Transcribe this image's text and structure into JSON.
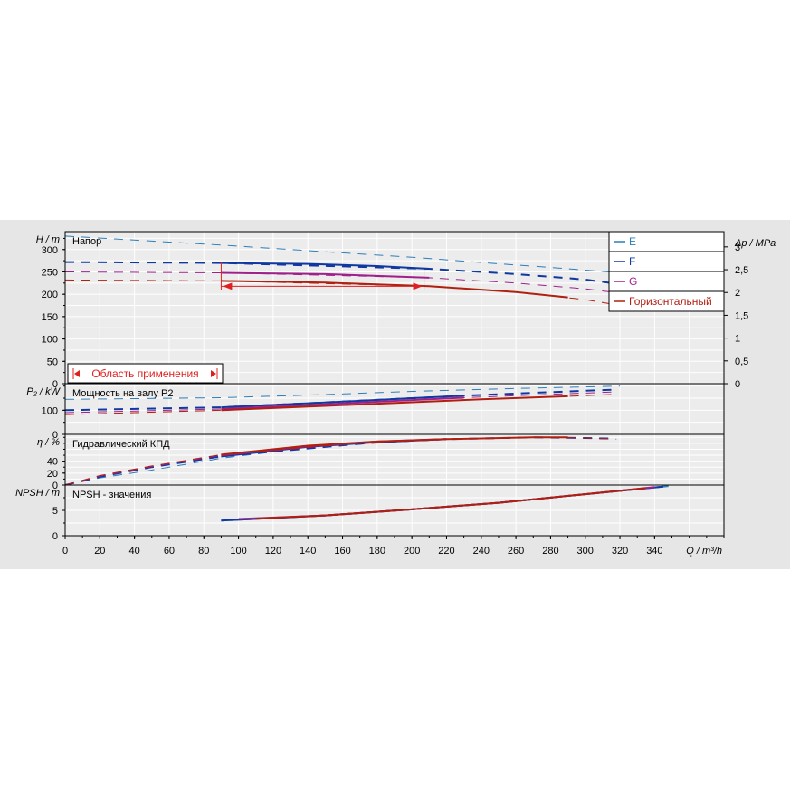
{
  "colors": {
    "panel_bg": "#e6e6e6",
    "plot_bg": "#ececec",
    "grid": "#ffffff",
    "axis": "#000000",
    "E": "#2e7eb8",
    "F": "#1038a0",
    "G": "#a0208a",
    "H": "#b02010",
    "range": "#e02020"
  },
  "chart_data": {
    "type": "line",
    "x_axis": {
      "label": "Q / m³/h",
      "range": [
        0,
        380
      ],
      "ticks": [
        0,
        20,
        40,
        60,
        80,
        100,
        120,
        140,
        160,
        180,
        200,
        220,
        240,
        260,
        280,
        300,
        320,
        340
      ]
    },
    "legend": {
      "placement": "top-right",
      "entries": [
        {
          "key": "E",
          "label": "E"
        },
        {
          "key": "F",
          "label": "F"
        },
        {
          "key": "G",
          "label": "G"
        },
        {
          "key": "H",
          "label": "Горизонтальный"
        }
      ]
    },
    "panels": [
      {
        "id": "head",
        "title": "Напор",
        "ylabel": "H / m",
        "ylim": [
          0,
          340
        ],
        "yticks": [
          0,
          50,
          100,
          150,
          200,
          250,
          300
        ],
        "y2label": "Δp / MPa",
        "y2lim": [
          0,
          3.334
        ],
        "y2ticks": [
          "0",
          "0,5",
          "1",
          "1,5",
          "2",
          "2,5",
          "3"
        ],
        "series": [
          {
            "key": "E",
            "dashed": [
              [
                0,
                330
              ],
              [
                90,
                310
              ],
              [
                150,
                295
              ],
              [
                200,
                283
              ],
              [
                240,
                271
              ],
              [
                280,
                260
              ],
              [
                320,
                248
              ]
            ],
            "solid": []
          },
          {
            "key": "F",
            "dashed": [
              [
                0,
                272
              ],
              [
                90,
                270
              ],
              [
                210,
                257
              ],
              [
                260,
                245
              ],
              [
                300,
                233
              ],
              [
                315,
                225
              ]
            ],
            "solid": [
              [
                90,
                270
              ],
              [
                140,
                268
              ],
              [
                180,
                263
              ],
              [
                210,
                257
              ]
            ]
          },
          {
            "key": "G",
            "dashed": [
              [
                0,
                250
              ],
              [
                90,
                248
              ],
              [
                210,
                237
              ],
              [
                260,
                225
              ],
              [
                300,
                212
              ],
              [
                315,
                205
              ]
            ],
            "solid": [
              [
                90,
                248
              ],
              [
                150,
                245
              ],
              [
                210,
                237
              ]
            ]
          },
          {
            "key": "H",
            "dashed": [
              [
                0,
                232
              ],
              [
                90,
                230
              ],
              [
                210,
                218
              ],
              [
                260,
                205
              ],
              [
                300,
                188
              ],
              [
                320,
                175
              ]
            ],
            "solid": [
              [
                90,
                230
              ],
              [
                150,
                226
              ],
              [
                210,
                218
              ],
              [
                260,
                205
              ],
              [
                290,
                193
              ]
            ]
          }
        ],
        "operating_range": {
          "q_min": 90,
          "q_max": 207,
          "label": "Область применения"
        }
      },
      {
        "id": "power",
        "title": "Мощность на валу P2",
        "ylabel": "P₂ / kW",
        "ylim": [
          0,
          210
        ],
        "yticks": [
          0,
          100
        ],
        "series": [
          {
            "key": "E",
            "dashed": [
              [
                0,
                145
              ],
              [
                90,
                152
              ],
              [
                150,
                165
              ],
              [
                200,
                178
              ],
              [
                260,
                190
              ],
              [
                320,
                200
              ]
            ],
            "solid": []
          },
          {
            "key": "F",
            "dashed": [
              [
                0,
                100
              ],
              [
                90,
                112
              ],
              [
                230,
                160
              ],
              [
                270,
                172
              ],
              [
                315,
                185
              ]
            ],
            "solid": [
              [
                90,
                112
              ],
              [
                150,
                132
              ],
              [
                200,
                150
              ],
              [
                230,
                160
              ]
            ]
          },
          {
            "key": "G",
            "dashed": [
              [
                0,
                90
              ],
              [
                90,
                105
              ],
              [
                230,
                152
              ],
              [
                270,
                163
              ],
              [
                315,
                175
              ]
            ],
            "solid": [
              [
                90,
                105
              ],
              [
                150,
                125
              ],
              [
                200,
                142
              ],
              [
                230,
                152
              ]
            ]
          },
          {
            "key": "H",
            "dashed": [
              [
                0,
                82
              ],
              [
                90,
                100
              ],
              [
                240,
                145
              ],
              [
                280,
                155
              ],
              [
                315,
                165
              ]
            ],
            "solid": [
              [
                90,
                100
              ],
              [
                150,
                118
              ],
              [
                200,
                133
              ],
              [
                240,
                145
              ],
              [
                290,
                158
              ]
            ]
          }
        ]
      },
      {
        "id": "efficiency",
        "title": "Гидравлический КПД",
        "ylabel": "η / %",
        "ylim": [
          0,
          85
        ],
        "yticks": [
          0,
          20,
          40
        ],
        "series": [
          {
            "key": "E",
            "dashed": [
              [
                0,
                0
              ],
              [
                20,
                12
              ],
              [
                50,
                25
              ],
              [
                90,
                45
              ],
              [
                140,
                63
              ],
              [
                200,
                74
              ],
              [
                260,
                80
              ],
              [
                300,
                79
              ],
              [
                318,
                77
              ]
            ],
            "solid": []
          },
          {
            "key": "F",
            "dashed": [
              [
                0,
                0
              ],
              [
                20,
                14
              ],
              [
                50,
                30
              ],
              [
                90,
                48
              ],
              [
                180,
                72
              ],
              [
                220,
                77
              ],
              [
                270,
                80
              ],
              [
                300,
                79
              ],
              [
                315,
                78
              ]
            ],
            "solid": [
              [
                90,
                48
              ],
              [
                140,
                64
              ],
              [
                180,
                72
              ],
              [
                220,
                77
              ]
            ]
          },
          {
            "key": "G",
            "dashed": [
              [
                0,
                0
              ],
              [
                20,
                15
              ],
              [
                50,
                31
              ],
              [
                90,
                50
              ],
              [
                180,
                73
              ],
              [
                220,
                77
              ],
              [
                270,
                80
              ],
              [
                300,
                79
              ],
              [
                315,
                78
              ]
            ],
            "solid": [
              [
                90,
                50
              ],
              [
                140,
                65
              ],
              [
                180,
                73
              ],
              [
                220,
                77
              ]
            ]
          },
          {
            "key": "H",
            "dashed": [
              [
                0,
                0
              ],
              [
                20,
                16
              ],
              [
                50,
                32
              ],
              [
                90,
                51
              ],
              [
                180,
                73
              ],
              [
                220,
                77
              ],
              [
                270,
                80
              ],
              [
                300,
                79
              ],
              [
                315,
                78
              ]
            ],
            "solid": [
              [
                90,
                51
              ],
              [
                140,
                66
              ],
              [
                180,
                73
              ],
              [
                220,
                77
              ],
              [
                270,
                80
              ],
              [
                290,
                80
              ]
            ]
          }
        ]
      },
      {
        "id": "npsh",
        "title": "NPSH - значения",
        "ylabel": "NPSH / m",
        "ylim": [
          0,
          10
        ],
        "yticks": [
          0,
          5
        ],
        "series": [
          {
            "key": "E",
            "dashed": [],
            "solid": [
              [
                90,
                3.0
              ],
              [
                150,
                4.0
              ],
              [
                200,
                5.2
              ],
              [
                250,
                6.5
              ],
              [
                300,
                8.2
              ],
              [
                348,
                9.8
              ]
            ]
          },
          {
            "key": "F",
            "dashed": [],
            "solid": [
              [
                90,
                3.0
              ],
              [
                150,
                4.0
              ],
              [
                200,
                5.2
              ],
              [
                250,
                6.5
              ],
              [
                300,
                8.2
              ],
              [
                345,
                9.7
              ]
            ]
          },
          {
            "key": "G",
            "dashed": [],
            "solid": [
              [
                100,
                3.3
              ],
              [
                150,
                4.0
              ],
              [
                200,
                5.2
              ],
              [
                250,
                6.5
              ],
              [
                300,
                8.2
              ],
              [
                340,
                9.6
              ]
            ]
          },
          {
            "key": "H",
            "dashed": [],
            "solid": [
              [
                110,
                3.4
              ],
              [
                150,
                4.0
              ],
              [
                200,
                5.2
              ],
              [
                250,
                6.5
              ],
              [
                300,
                8.2
              ],
              [
                335,
                9.4
              ]
            ]
          }
        ]
      }
    ]
  }
}
